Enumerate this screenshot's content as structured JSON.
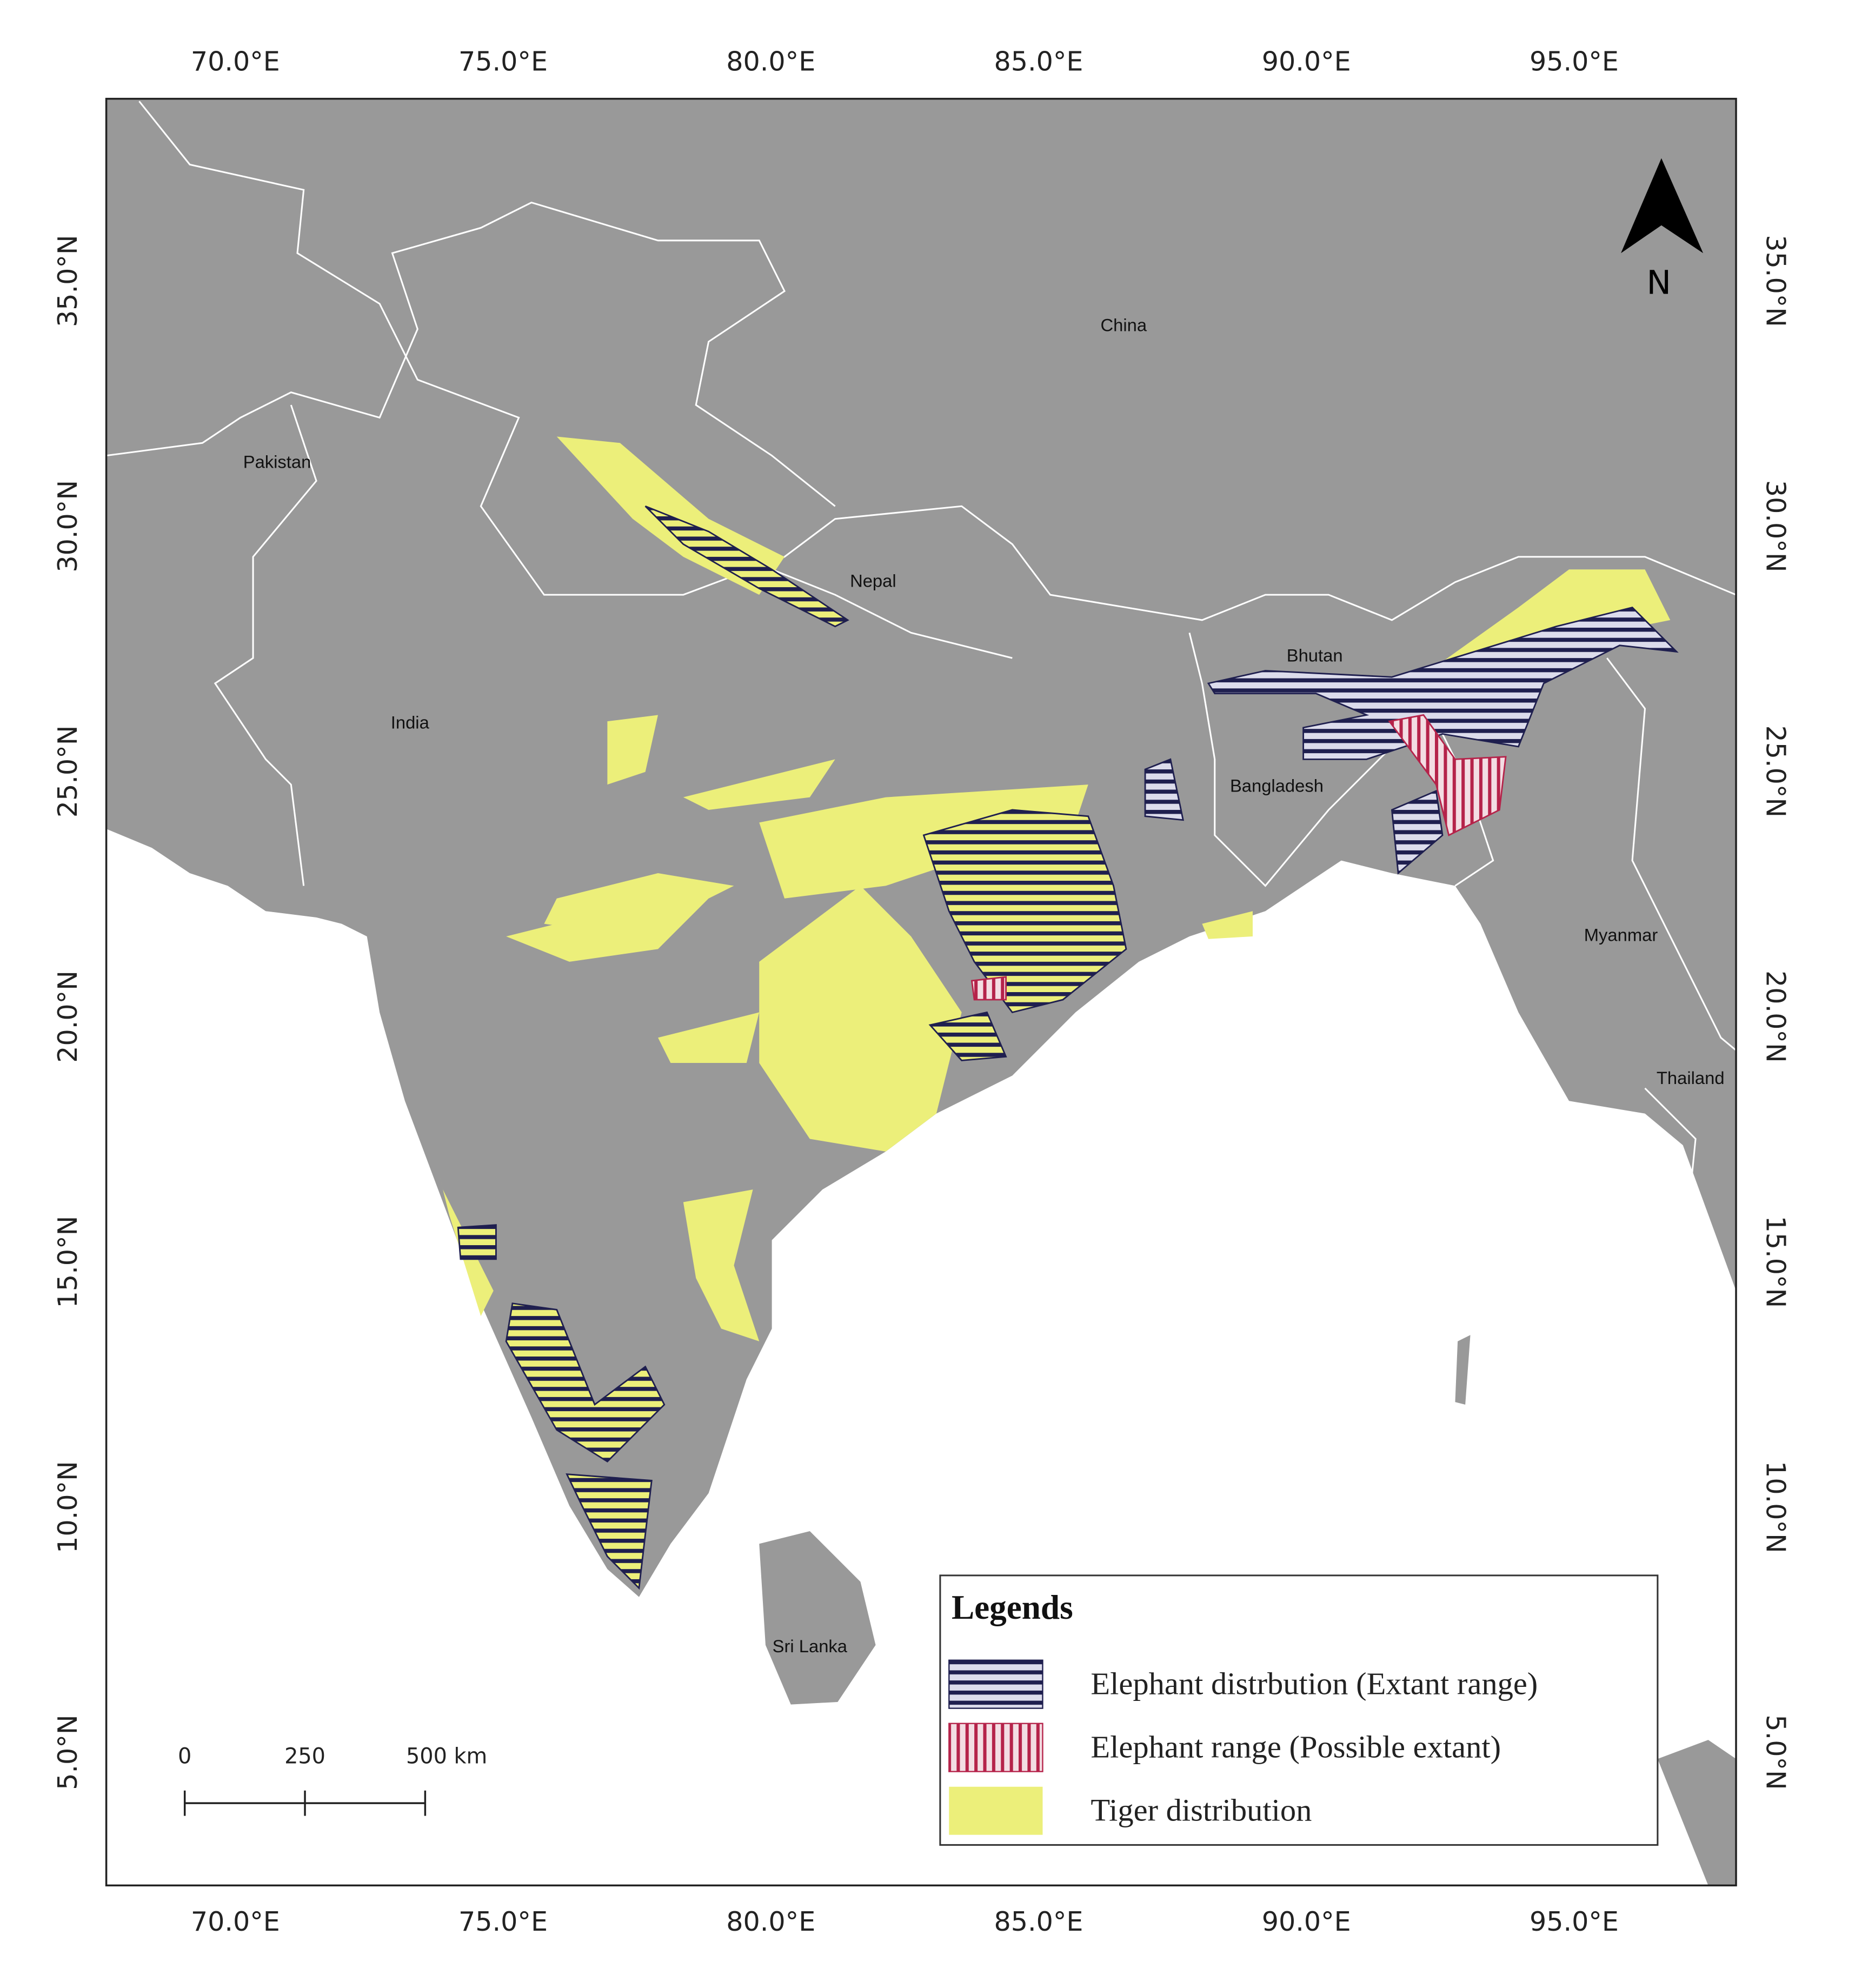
{
  "map": {
    "lon_ticks": [
      "70.0°E",
      "75.0°E",
      "80.0°E",
      "85.0°E",
      "90.0°E",
      "95.0°E"
    ],
    "lat_ticks": [
      "35.0°N",
      "30.0°N",
      "25.0°N",
      "20.0°N",
      "15.0°N",
      "10.0°N",
      "5.0°N"
    ],
    "country_labels": [
      "China",
      "Pakistan",
      "Nepal",
      "India",
      "Bhutan",
      "Bangladesh",
      "Myanmar",
      "Thailand",
      "Sri Lanka"
    ],
    "north_label": "N",
    "scale_bar": {
      "labels": [
        "0",
        "250",
        "500 km"
      ]
    },
    "legend": {
      "title": "Legends",
      "items": [
        "Elephant distrbution (Extant range)",
        "Elephant range (Possible extant)",
        "Tiger distribution"
      ]
    }
  }
}
